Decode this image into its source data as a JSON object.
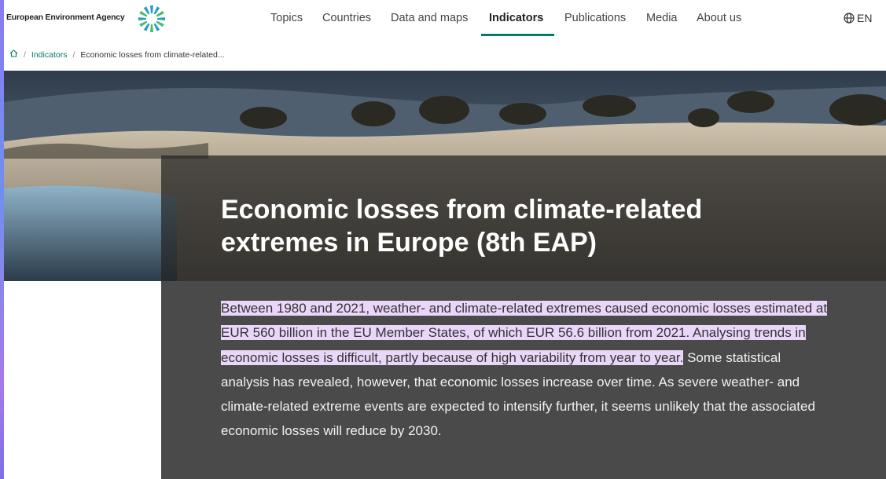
{
  "header": {
    "logo_text": "European Environment Agency",
    "nav": [
      "Topics",
      "Countries",
      "Data and maps",
      "Indicators",
      "Publications",
      "Media",
      "About us"
    ],
    "active": "Indicators",
    "language": "EN"
  },
  "breadcrumb": {
    "separator": "/",
    "items": [
      "Indicators",
      "Economic losses from climate-related..."
    ]
  },
  "hero": {
    "title": "Economic losses from climate-related extremes in Europe (8th EAP)"
  },
  "summary": {
    "highlighted": "Between 1980 and 2021, weather- and climate-related extremes caused economic losses estimated at EUR 560 billion in the EU Member States, of which EUR 56.6 billion from 2021. Analysing trends in economic losses is difficult, partly because of high variability from year to year.",
    "rest": "Some statistical analysis has revealed, however, that economic losses increase over time. As severe weather- and climate-related extreme events are expected to intensify further, it seems unlikely that the associated economic losses will reduce by 2030."
  }
}
